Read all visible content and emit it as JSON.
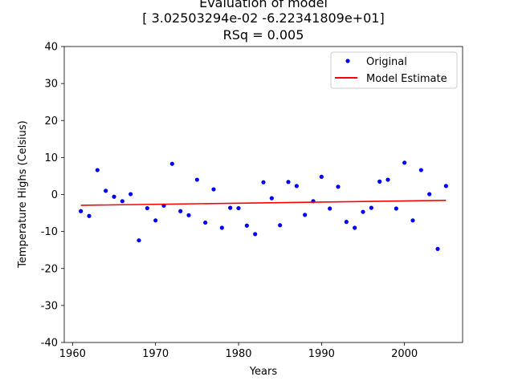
{
  "chart_data": {
    "type": "scatter",
    "title_lines": [
      "Evaluation of model",
      "[ 3.02503294e-02 -6.22341809e+01]",
      "RSq = 0.005"
    ],
    "xlabel": "Years",
    "ylabel": "Temperature Highs (Celsius)",
    "xlim": [
      1959,
      2007
    ],
    "ylim": [
      -40,
      40
    ],
    "xticks": [
      1960,
      1970,
      1980,
      1990,
      2000
    ],
    "yticks": [
      -40,
      -30,
      -20,
      -10,
      0,
      10,
      20,
      30,
      40
    ],
    "grid": false,
    "legend_position": "top-right",
    "series": [
      {
        "name": "Original",
        "style": "points",
        "color": "#0000ff",
        "x": [
          1961,
          1962,
          1963,
          1964,
          1965,
          1966,
          1967,
          1968,
          1969,
          1970,
          1971,
          1972,
          1973,
          1974,
          1975,
          1976,
          1977,
          1978,
          1979,
          1980,
          1981,
          1982,
          1983,
          1984,
          1985,
          1986,
          1987,
          1988,
          1989,
          1990,
          1991,
          1992,
          1993,
          1994,
          1995,
          1996,
          1997,
          1998,
          1999,
          2000,
          2001,
          2002,
          2003,
          2004,
          2005
        ],
        "y": [
          -4.5,
          -5.8,
          6.6,
          1.0,
          -0.6,
          -1.8,
          0.1,
          -12.4,
          -3.7,
          -7.0,
          -3.0,
          8.3,
          -4.5,
          -5.6,
          4.0,
          -7.6,
          1.4,
          -9.0,
          -3.6,
          -3.7,
          -8.4,
          -10.7,
          3.3,
          -1.0,
          -8.3,
          3.4,
          2.3,
          -5.5,
          -1.8,
          4.8,
          -3.8,
          2.1,
          -7.4,
          -9.0,
          -4.7,
          -3.6,
          3.5,
          4.0,
          -3.8,
          8.6,
          -7.0,
          6.6,
          0.1,
          -14.7,
          2.3
        ]
      },
      {
        "name": "Model Estimate",
        "style": "line",
        "color": "#ff0000",
        "x": [
          1961,
          2005
        ],
        "y": [
          -2.92,
          -1.59
        ]
      }
    ]
  }
}
